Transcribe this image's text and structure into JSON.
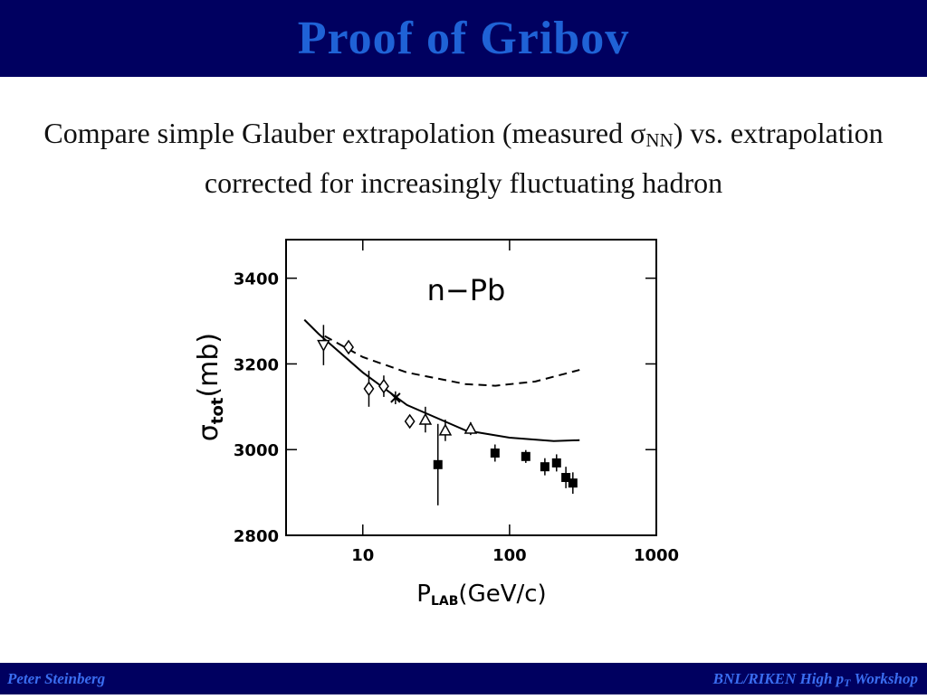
{
  "header": {
    "title": "Proof of Gribov"
  },
  "body": {
    "text": [
      "Compare simple Glauber extrapolation (measured σ",
      "NN",
      ") vs. extrapolation corrected for increasingly fluctuating hadron"
    ]
  },
  "chart_data": {
    "type": "scatter",
    "annotation": "n−Pb",
    "xlabel": [
      "P",
      "LAB",
      "(GeV/c)"
    ],
    "ylabel": [
      "σ",
      "tot",
      "(mb)"
    ],
    "xscale": "log",
    "xlim": [
      3,
      1000
    ],
    "xticks": [
      10,
      100,
      1000
    ],
    "ylim": [
      2800,
      3490
    ],
    "yticks": [
      2800,
      3000,
      3200,
      3400
    ],
    "color": "#000000",
    "series": [
      {
        "marker": "triangle-down",
        "x": [
          5.4
        ],
        "values": [
          3244
        ],
        "errors": [
          47
        ]
      },
      {
        "marker": "diamond",
        "x": [
          8.0,
          11.0,
          13.9,
          20.9
        ],
        "values": [
          3239,
          3142,
          3148,
          3066
        ],
        "errors": [
          15,
          42,
          25,
          15
        ]
      },
      {
        "marker": "cross",
        "x": [
          16.7
        ],
        "values": [
          3121
        ],
        "errors": [
          15
        ]
      },
      {
        "marker": "triangle-up",
        "x": [
          26.7,
          36.5,
          54.3
        ],
        "values": [
          3070,
          3045,
          3049
        ],
        "errors": [
          30,
          25,
          15
        ]
      },
      {
        "marker": "square",
        "x": [
          32.5,
          79.6,
          129,
          174,
          209,
          242,
          270
        ],
        "values": [
          2965,
          2992,
          2984,
          2960,
          2969,
          2935,
          2922
        ],
        "errors": [
          95,
          20,
          15,
          20,
          20,
          25,
          25
        ]
      }
    ],
    "curves": [
      {
        "style": "solid",
        "x": [
          4,
          5,
          10,
          20,
          50,
          100,
          200,
          300
        ],
        "values": [
          3303,
          3270,
          3180,
          3104,
          3045,
          3028,
          3020,
          3022
        ]
      },
      {
        "style": "dashed",
        "x": [
          5.5,
          10,
          20,
          50,
          80,
          150,
          300
        ],
        "values": [
          3265,
          3216,
          3180,
          3153,
          3149,
          3159,
          3186
        ]
      }
    ]
  },
  "footer": {
    "left": "Peter Steinberg",
    "right": [
      "BNL/RIKEN High p",
      "T",
      " Workshop"
    ]
  }
}
